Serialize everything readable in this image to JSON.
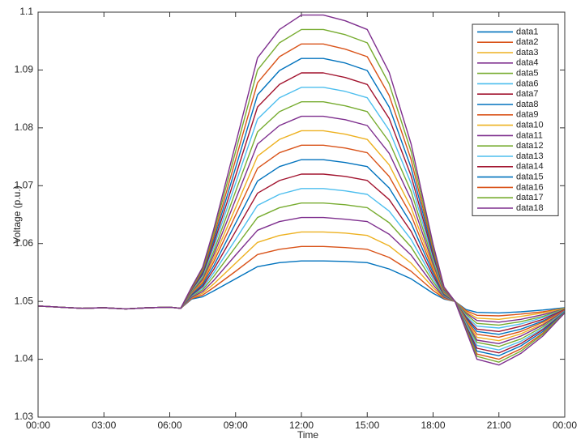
{
  "chart_data": {
    "type": "line",
    "xlabel": "Time",
    "ylabel": "Voltage (p.u.)",
    "x": [
      0,
      1,
      2,
      3,
      4,
      5,
      6,
      6.5,
      7,
      7.5,
      8,
      9,
      10,
      11,
      12,
      13,
      14,
      15,
      16,
      17,
      18,
      18.5,
      19,
      19.5,
      20,
      21,
      22,
      23,
      24
    ],
    "xlim": [
      0,
      24
    ],
    "xticks": [
      {
        "value": 0,
        "label": "00:00"
      },
      {
        "value": 3,
        "label": "03:00"
      },
      {
        "value": 6,
        "label": "06:00"
      },
      {
        "value": 9,
        "label": "09:00"
      },
      {
        "value": 12,
        "label": "12:00"
      },
      {
        "value": 15,
        "label": "15:00"
      },
      {
        "value": 18,
        "label": "18:00"
      },
      {
        "value": 21,
        "label": "21:00"
      },
      {
        "value": 24,
        "label": "00:00"
      }
    ],
    "ylim": [
      1.03,
      1.1
    ],
    "yticks": [
      1.03,
      1.04,
      1.05,
      1.06,
      1.07,
      1.08,
      1.09,
      1.1
    ],
    "legend": "northeast",
    "series": [
      {
        "name": "data1",
        "color": "#0072bd",
        "values": [
          1.0492,
          1.049,
          1.0488,
          1.0489,
          1.0487,
          1.0489,
          1.049,
          1.0488,
          1.0504,
          1.0508,
          1.0518,
          1.0539,
          1.056,
          1.0567,
          1.057,
          1.057,
          1.0569,
          1.0567,
          1.0556,
          1.0539,
          1.0514,
          1.0504,
          1.05,
          1.0486,
          1.0481,
          1.048,
          1.0482,
          1.0485,
          1.0489
        ]
      },
      {
        "name": "data2",
        "color": "#d95319",
        "values": [
          1.0492,
          1.049,
          1.0488,
          1.0489,
          1.0487,
          1.0489,
          1.049,
          1.0488,
          1.0505,
          1.0511,
          1.0524,
          1.0552,
          1.0581,
          1.059,
          1.0595,
          1.0595,
          1.0593,
          1.059,
          1.0576,
          1.0552,
          1.0519,
          1.0505,
          1.05,
          1.0484,
          1.0476,
          1.0475,
          1.0478,
          1.0482,
          1.0488
        ]
      },
      {
        "name": "data3",
        "color": "#edb120",
        "values": [
          1.0492,
          1.049,
          1.0488,
          1.0489,
          1.0487,
          1.0489,
          1.049,
          1.0488,
          1.0506,
          1.0514,
          1.053,
          1.0566,
          1.0602,
          1.0614,
          1.062,
          1.062,
          1.0618,
          1.0614,
          1.0596,
          1.0566,
          1.0524,
          1.0506,
          1.05,
          1.0482,
          1.0471,
          1.0469,
          1.0474,
          1.048,
          1.0488
        ]
      },
      {
        "name": "data4",
        "color": "#7e2f8e",
        "values": [
          1.0492,
          1.049,
          1.0488,
          1.0489,
          1.0487,
          1.0489,
          1.049,
          1.0488,
          1.0507,
          1.0517,
          1.0536,
          1.058,
          1.0623,
          1.0638,
          1.0645,
          1.0645,
          1.0642,
          1.0638,
          1.0616,
          1.058,
          1.0529,
          1.0507,
          1.05,
          1.048,
          1.0467,
          1.0464,
          1.0469,
          1.0477,
          1.0487
        ]
      },
      {
        "name": "data5",
        "color": "#77ac30",
        "values": [
          1.0492,
          1.049,
          1.0488,
          1.0489,
          1.0487,
          1.0489,
          1.049,
          1.0488,
          1.0509,
          1.052,
          1.0543,
          1.0594,
          1.0645,
          1.0662,
          1.067,
          1.067,
          1.0667,
          1.0662,
          1.0636,
          1.0594,
          1.0534,
          1.0509,
          1.05,
          1.0478,
          1.0462,
          1.0459,
          1.0465,
          1.0474,
          1.0487
        ]
      },
      {
        "name": "data6",
        "color": "#4dbeee",
        "values": [
          1.0492,
          1.049,
          1.0488,
          1.0489,
          1.0487,
          1.0489,
          1.049,
          1.0488,
          1.051,
          1.0523,
          1.0549,
          1.0607,
          1.0666,
          1.0685,
          1.0695,
          1.0695,
          1.0691,
          1.0685,
          1.0656,
          1.0607,
          1.0539,
          1.051,
          1.05,
          1.0475,
          1.0457,
          1.0454,
          1.0461,
          1.0472,
          1.0486
        ]
      },
      {
        "name": "data7",
        "color": "#a2142f",
        "values": [
          1.0492,
          1.049,
          1.0488,
          1.0489,
          1.0487,
          1.0489,
          1.049,
          1.0488,
          1.0511,
          1.0526,
          1.0555,
          1.0621,
          1.0687,
          1.0709,
          1.072,
          1.072,
          1.0716,
          1.0709,
          1.0676,
          1.0621,
          1.0544,
          1.0511,
          1.05,
          1.0473,
          1.0452,
          1.0448,
          1.0457,
          1.0469,
          1.0486
        ]
      },
      {
        "name": "data8",
        "color": "#0072bd",
        "values": [
          1.0492,
          1.049,
          1.0488,
          1.0489,
          1.0487,
          1.0489,
          1.049,
          1.0488,
          1.0512,
          1.0529,
          1.0561,
          1.0635,
          1.0708,
          1.0733,
          1.0745,
          1.0745,
          1.074,
          1.0733,
          1.0696,
          1.0635,
          1.0549,
          1.0512,
          1.05,
          1.0471,
          1.0448,
          1.0443,
          1.0452,
          1.0466,
          1.0485
        ]
      },
      {
        "name": "data9",
        "color": "#d95319",
        "values": [
          1.0492,
          1.049,
          1.0488,
          1.0489,
          1.0487,
          1.0489,
          1.049,
          1.0488,
          1.0514,
          1.0532,
          1.0568,
          1.0649,
          1.073,
          1.0757,
          1.077,
          1.077,
          1.0765,
          1.0757,
          1.0716,
          1.0649,
          1.0554,
          1.0514,
          1.05,
          1.0469,
          1.0443,
          1.0438,
          1.0448,
          1.0464,
          1.0485
        ]
      },
      {
        "name": "data10",
        "color": "#edb120",
        "values": [
          1.0492,
          1.049,
          1.0488,
          1.0489,
          1.0487,
          1.0489,
          1.049,
          1.0488,
          1.0515,
          1.0535,
          1.0574,
          1.0662,
          1.0751,
          1.078,
          1.0795,
          1.0795,
          1.0789,
          1.078,
          1.0736,
          1.0662,
          1.0559,
          1.0515,
          1.05,
          1.0467,
          1.0438,
          1.0432,
          1.0444,
          1.0461,
          1.0484
        ]
      },
      {
        "name": "data11",
        "color": "#7e2f8e",
        "values": [
          1.0492,
          1.049,
          1.0488,
          1.0489,
          1.0487,
          1.0489,
          1.049,
          1.0488,
          1.0516,
          1.0538,
          1.058,
          1.0676,
          1.0772,
          1.0804,
          1.082,
          1.082,
          1.0814,
          1.0804,
          1.0756,
          1.0676,
          1.0564,
          1.0516,
          1.05,
          1.0465,
          1.0433,
          1.0427,
          1.044,
          1.0459,
          1.0484
        ]
      },
      {
        "name": "data12",
        "color": "#77ac30",
        "values": [
          1.0492,
          1.049,
          1.0488,
          1.0489,
          1.0487,
          1.0489,
          1.049,
          1.0488,
          1.0517,
          1.0541,
          1.0586,
          1.069,
          1.0793,
          1.0828,
          1.0845,
          1.0845,
          1.0838,
          1.0828,
          1.0776,
          1.069,
          1.0569,
          1.0517,
          1.05,
          1.0463,
          1.0429,
          1.0422,
          1.0435,
          1.0456,
          1.0483
        ]
      },
      {
        "name": "data13",
        "color": "#4dbeee",
        "values": [
          1.0492,
          1.049,
          1.0488,
          1.0489,
          1.0487,
          1.0489,
          1.049,
          1.0488,
          1.0519,
          1.0544,
          1.0593,
          1.0704,
          1.0815,
          1.0852,
          1.087,
          1.087,
          1.0863,
          1.0852,
          1.0796,
          1.0704,
          1.0574,
          1.0519,
          1.05,
          1.0461,
          1.0424,
          1.0416,
          1.0431,
          1.0453,
          1.0483
        ]
      },
      {
        "name": "data14",
        "color": "#a2142f",
        "values": [
          1.0492,
          1.049,
          1.0488,
          1.0489,
          1.0487,
          1.0489,
          1.049,
          1.0488,
          1.052,
          1.0547,
          1.0599,
          1.0717,
          1.0836,
          1.0875,
          1.0895,
          1.0895,
          1.0887,
          1.0875,
          1.0816,
          1.0717,
          1.0579,
          1.052,
          1.05,
          1.0458,
          1.0419,
          1.0411,
          1.0427,
          1.0451,
          1.0482
        ]
      },
      {
        "name": "data15",
        "color": "#0072bd",
        "values": [
          1.0492,
          1.049,
          1.0488,
          1.0489,
          1.0487,
          1.0489,
          1.049,
          1.0488,
          1.0521,
          1.055,
          1.0605,
          1.0731,
          1.0857,
          1.0899,
          1.092,
          1.092,
          1.0912,
          1.0899,
          1.0836,
          1.0731,
          1.0584,
          1.0521,
          1.05,
          1.0456,
          1.0414,
          1.0406,
          1.0423,
          1.0448,
          1.0482
        ]
      },
      {
        "name": "data16",
        "color": "#d95319",
        "values": [
          1.0492,
          1.049,
          1.0488,
          1.0489,
          1.0487,
          1.0489,
          1.049,
          1.0488,
          1.0522,
          1.0553,
          1.0611,
          1.0745,
          1.0878,
          1.0923,
          1.0945,
          1.0945,
          1.0936,
          1.0923,
          1.0856,
          1.0745,
          1.0589,
          1.0522,
          1.05,
          1.0454,
          1.0409,
          1.04,
          1.0418,
          1.0445,
          1.0481
        ]
      },
      {
        "name": "data17",
        "color": "#77ac30",
        "values": [
          1.0492,
          1.049,
          1.0488,
          1.0489,
          1.0487,
          1.0489,
          1.049,
          1.0488,
          1.0524,
          1.0556,
          1.0618,
          1.0759,
          1.09,
          1.0947,
          1.097,
          1.097,
          1.0961,
          1.0947,
          1.0876,
          1.0759,
          1.0594,
          1.0524,
          1.05,
          1.0452,
          1.0405,
          1.0395,
          1.0414,
          1.0443,
          1.0481
        ]
      },
      {
        "name": "data18",
        "color": "#7e2f8e",
        "values": [
          1.0492,
          1.049,
          1.0488,
          1.0489,
          1.0487,
          1.0489,
          1.049,
          1.0488,
          1.0525,
          1.0559,
          1.0624,
          1.0772,
          1.0921,
          1.097,
          1.0995,
          1.0995,
          1.0985,
          1.097,
          1.0896,
          1.0772,
          1.0599,
          1.0525,
          1.05,
          1.045,
          1.04,
          1.039,
          1.041,
          1.044,
          1.048
        ]
      }
    ]
  }
}
